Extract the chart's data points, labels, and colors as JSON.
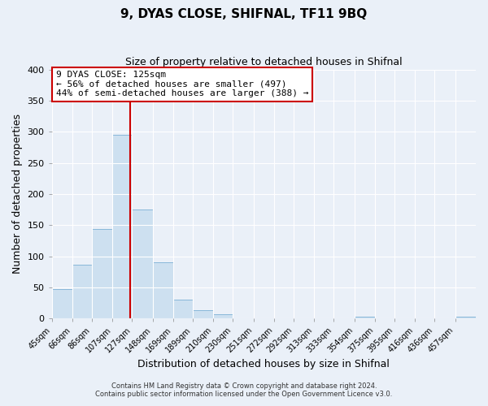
{
  "title": "9, DYAS CLOSE, SHIFNAL, TF11 9BQ",
  "subtitle": "Size of property relative to detached houses in Shifnal",
  "xlabel": "Distribution of detached houses by size in Shifnal",
  "ylabel": "Number of detached properties",
  "bar_color": "#cde0f0",
  "bar_edge_color": "#7bafd4",
  "background_color": "#eaf0f8",
  "grid_color": "#ffffff",
  "categories": [
    "45sqm",
    "66sqm",
    "86sqm",
    "107sqm",
    "127sqm",
    "148sqm",
    "169sqm",
    "189sqm",
    "210sqm",
    "230sqm",
    "251sqm",
    "272sqm",
    "292sqm",
    "313sqm",
    "333sqm",
    "354sqm",
    "375sqm",
    "395sqm",
    "416sqm",
    "436sqm",
    "457sqm"
  ],
  "values": [
    47,
    86,
    144,
    295,
    175,
    90,
    30,
    13,
    7,
    0,
    0,
    0,
    0,
    0,
    0,
    3,
    0,
    0,
    0,
    0,
    3
  ],
  "bin_edges": [
    45,
    66,
    86,
    107,
    127,
    148,
    169,
    189,
    210,
    230,
    251,
    272,
    292,
    313,
    333,
    354,
    375,
    395,
    416,
    436,
    457,
    478
  ],
  "ylim": [
    0,
    400
  ],
  "yticks": [
    0,
    50,
    100,
    150,
    200,
    250,
    300,
    350,
    400
  ],
  "vline_x": 125,
  "vline_color": "#cc0000",
  "annotation_title": "9 DYAS CLOSE: 125sqm",
  "annotation_line1": "← 56% of detached houses are smaller (497)",
  "annotation_line2": "44% of semi-detached houses are larger (388) →",
  "annotation_box_color": "#ffffff",
  "annotation_box_edge": "#cc0000",
  "footer1": "Contains HM Land Registry data © Crown copyright and database right 2024.",
  "footer2": "Contains public sector information licensed under the Open Government Licence v3.0."
}
